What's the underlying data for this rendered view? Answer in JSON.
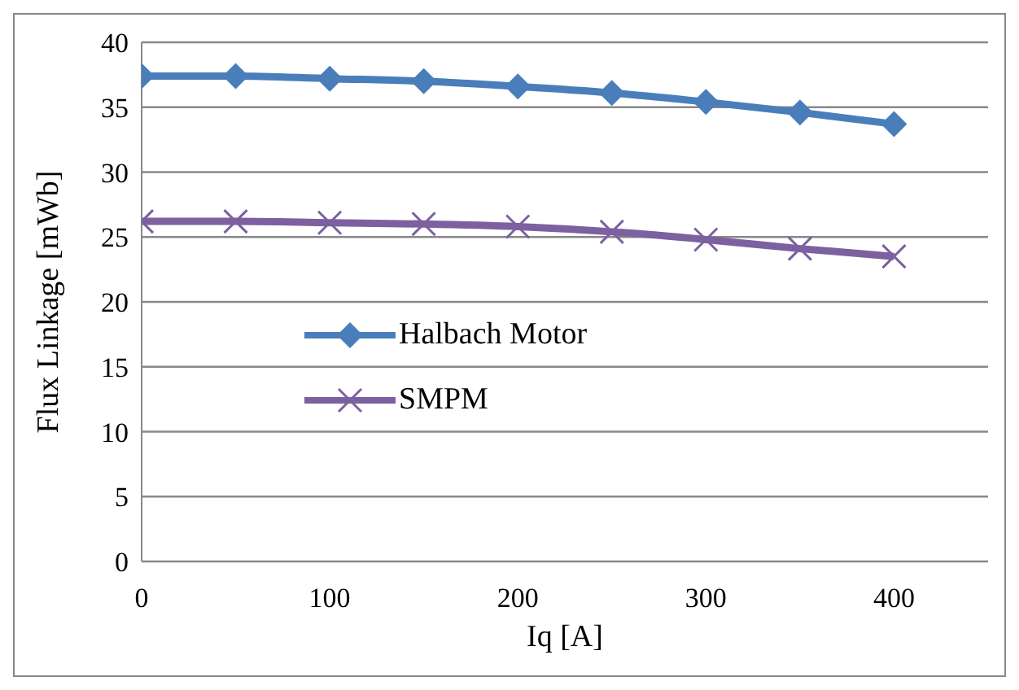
{
  "chart_data": {
    "type": "line",
    "xlabel": "Iq [A]",
    "ylabel": "Flux Linkage [mWb]",
    "x": [
      0,
      50,
      100,
      150,
      200,
      250,
      300,
      350,
      400
    ],
    "series": [
      {
        "name": "Halbach Motor",
        "color": "#4a7ebb",
        "marker": "diamond",
        "values": [
          37.4,
          37.4,
          37.2,
          37.0,
          36.6,
          36.1,
          35.4,
          34.6,
          33.7
        ]
      },
      {
        "name": "SMPM",
        "color": "#7d60a0",
        "marker": "cross",
        "values": [
          26.2,
          26.2,
          26.1,
          26.0,
          25.8,
          25.4,
          24.8,
          24.1,
          23.5
        ]
      }
    ],
    "xlim": [
      0,
      450
    ],
    "xticks": [
      0,
      100,
      200,
      300,
      400
    ],
    "ylim": [
      0,
      40
    ],
    "yticks": [
      0,
      5,
      10,
      15,
      20,
      25,
      30,
      35,
      40
    ],
    "grid": "y",
    "legend": "left",
    "line_style": "solid"
  }
}
